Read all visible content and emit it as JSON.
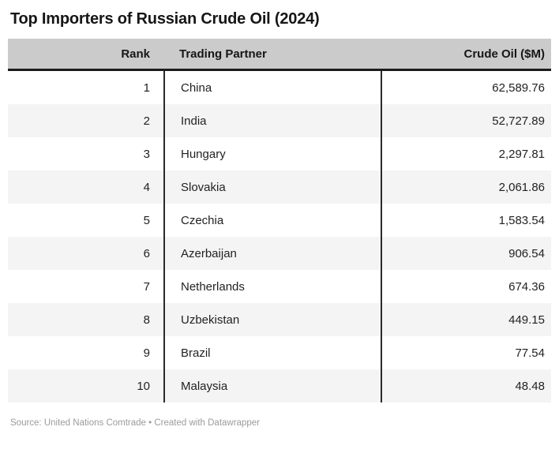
{
  "title": "Top Importers of Russian Crude Oil (2024)",
  "table": {
    "columns": [
      {
        "key": "rank",
        "label": "Rank"
      },
      {
        "key": "partner",
        "label": "Trading Partner"
      },
      {
        "key": "value",
        "label": "Crude Oil ($M)"
      }
    ],
    "rows": [
      {
        "rank": "1",
        "partner": "China",
        "value": "62,589.76"
      },
      {
        "rank": "2",
        "partner": "India",
        "value": "52,727.89"
      },
      {
        "rank": "3",
        "partner": "Hungary",
        "value": "2,297.81"
      },
      {
        "rank": "4",
        "partner": "Slovakia",
        "value": "2,061.86"
      },
      {
        "rank": "5",
        "partner": "Czechia",
        "value": "1,583.54"
      },
      {
        "rank": "6",
        "partner": "Azerbaijan",
        "value": "906.54"
      },
      {
        "rank": "7",
        "partner": "Netherlands",
        "value": "674.36"
      },
      {
        "rank": "8",
        "partner": "Uzbekistan",
        "value": "449.15"
      },
      {
        "rank": "9",
        "partner": "Brazil",
        "value": "77.54"
      },
      {
        "rank": "10",
        "partner": "Malaysia",
        "value": "48.48"
      }
    ]
  },
  "footer": {
    "source": "Source: United Nations Comtrade • Created with Datawrapper"
  },
  "colors": {
    "header_bg": "#cbcbcb",
    "header_underline": "#1c1c1c",
    "row_stripe": "#f4f4f4",
    "column_divider": "#2a2a2a",
    "text": "#222222",
    "footer_text": "#9b9b9b"
  },
  "chart_data": {
    "type": "table",
    "title": "Top Importers of Russian Crude Oil (2024)",
    "columns": [
      "Rank",
      "Trading Partner",
      "Crude Oil ($M)"
    ],
    "rows": [
      [
        1,
        "China",
        62589.76
      ],
      [
        2,
        "India",
        52727.89
      ],
      [
        3,
        "Hungary",
        2297.81
      ],
      [
        4,
        "Slovakia",
        2061.86
      ],
      [
        5,
        "Czechia",
        1583.54
      ],
      [
        6,
        "Azerbaijan",
        906.54
      ],
      [
        7,
        "Netherlands",
        674.36
      ],
      [
        8,
        "Uzbekistan",
        449.15
      ],
      [
        9,
        "Brazil",
        77.54
      ],
      [
        10,
        "Malaysia",
        48.48
      ]
    ],
    "source_note": "Source: United Nations Comtrade • Created with Datawrapper",
    "layout": {
      "zebra_striping": true,
      "header_background": "#cbcbcb",
      "value_alignment": "right"
    }
  }
}
